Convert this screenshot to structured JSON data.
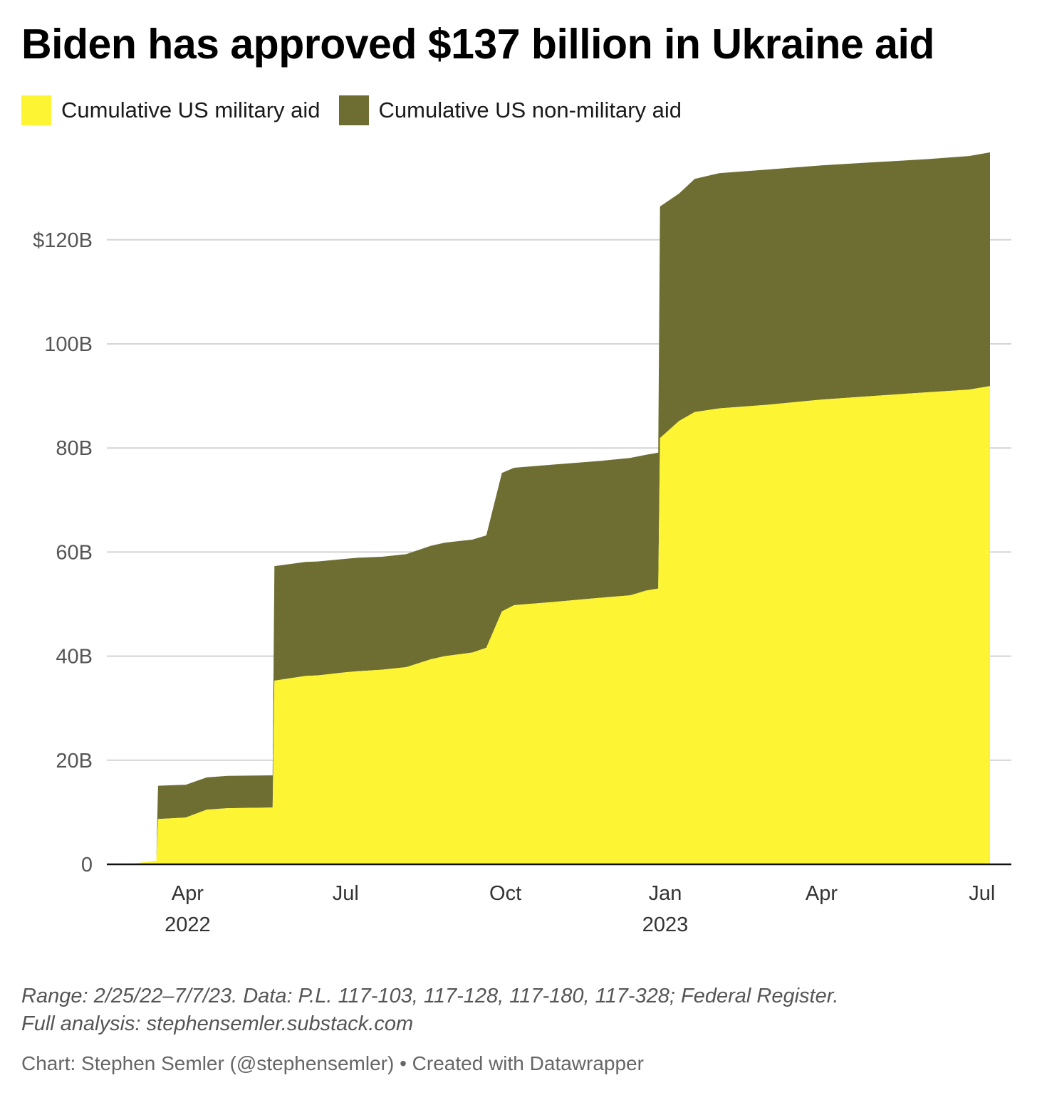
{
  "title": "Biden has approved $137 billion in Ukraine aid",
  "legend": [
    {
      "label": "Cumulative US military aid",
      "color": "#fdf534"
    },
    {
      "label": "Cumulative US non-military aid",
      "color": "#6e6e33"
    }
  ],
  "notes": {
    "line1": "Range: 2/25/22–7/7/23. Data: P.L. 117-103, 117-128, 117-180, 117-328; Federal Register.",
    "line2": "Full analysis: stephensemler.substack.com"
  },
  "credit": "Chart: Stephen Semler (@stephensemler) • Created with Datawrapper",
  "chart_data": {
    "type": "area",
    "stacked": true,
    "title": "Biden has approved $137 billion in Ukraine aid",
    "xlabel": "",
    "ylabel": "",
    "ylim": [
      0,
      137
    ],
    "y_ticks": [
      {
        "value": 0,
        "label": "0"
      },
      {
        "value": 20,
        "label": "20B"
      },
      {
        "value": 40,
        "label": "40B"
      },
      {
        "value": 60,
        "label": "60B"
      },
      {
        "value": 80,
        "label": "80B"
      },
      {
        "value": 100,
        "label": "100B"
      },
      {
        "value": 120,
        "label": "$120B"
      }
    ],
    "x_range": [
      "2022-02-25",
      "2023-07-07"
    ],
    "x_ticks": [
      {
        "date": "2022-04-01",
        "label": "Apr",
        "sublabel": "2022"
      },
      {
        "date": "2022-07-01",
        "label": "Jul",
        "sublabel": ""
      },
      {
        "date": "2022-10-01",
        "label": "Oct",
        "sublabel": ""
      },
      {
        "date": "2023-01-01",
        "label": "Jan",
        "sublabel": "2023"
      },
      {
        "date": "2023-04-01",
        "label": "Apr",
        "sublabel": ""
      },
      {
        "date": "2023-07-01",
        "label": "Jul",
        "sublabel": ""
      }
    ],
    "grid": true,
    "legend_position": "top-left",
    "dates": [
      "2022-02-25",
      "2022-03-14",
      "2022-03-15",
      "2022-03-31",
      "2022-04-12",
      "2022-04-24",
      "2022-05-20",
      "2022-05-21",
      "2022-06-08",
      "2022-06-15",
      "2022-07-01",
      "2022-07-08",
      "2022-07-22",
      "2022-08-05",
      "2022-08-19",
      "2022-08-27",
      "2022-09-12",
      "2022-09-20",
      "2022-09-29",
      "2022-10-06",
      "2022-10-28",
      "2022-11-24",
      "2022-12-12",
      "2022-12-21",
      "2022-12-28",
      "2022-12-29",
      "2023-01-09",
      "2023-01-18",
      "2023-02-01",
      "2023-03-01",
      "2023-04-01",
      "2023-05-01",
      "2023-06-01",
      "2023-06-25",
      "2023-07-07"
    ],
    "series": [
      {
        "name": "Cumulative US military aid",
        "values": [
          0,
          0.7,
          8.7,
          9,
          10.5,
          10.8,
          10.9,
          35.3,
          36.2,
          36.3,
          36.9,
          37.1,
          37.4,
          37.9,
          39.4,
          40,
          40.7,
          41.6,
          48.6,
          49.8,
          50.4,
          51.2,
          51.7,
          52.6,
          53,
          81.9,
          85.2,
          86.9,
          87.6,
          88.3,
          89.3,
          90,
          90.7,
          91.2,
          91.9
        ]
      },
      {
        "name": "Cumulative US non-military aid",
        "values": [
          0,
          0,
          6.4,
          6.3,
          6.2,
          6.2,
          6.2,
          22,
          21.9,
          21.9,
          21.8,
          21.8,
          21.7,
          21.7,
          21.8,
          21.8,
          21.7,
          21.6,
          26.6,
          26.4,
          26.4,
          26.3,
          26.4,
          26.1,
          26.1,
          44.5,
          43.7,
          44.8,
          45.2,
          45.2,
          45,
          44.9,
          44.8,
          44.9,
          44.9
        ]
      }
    ]
  }
}
